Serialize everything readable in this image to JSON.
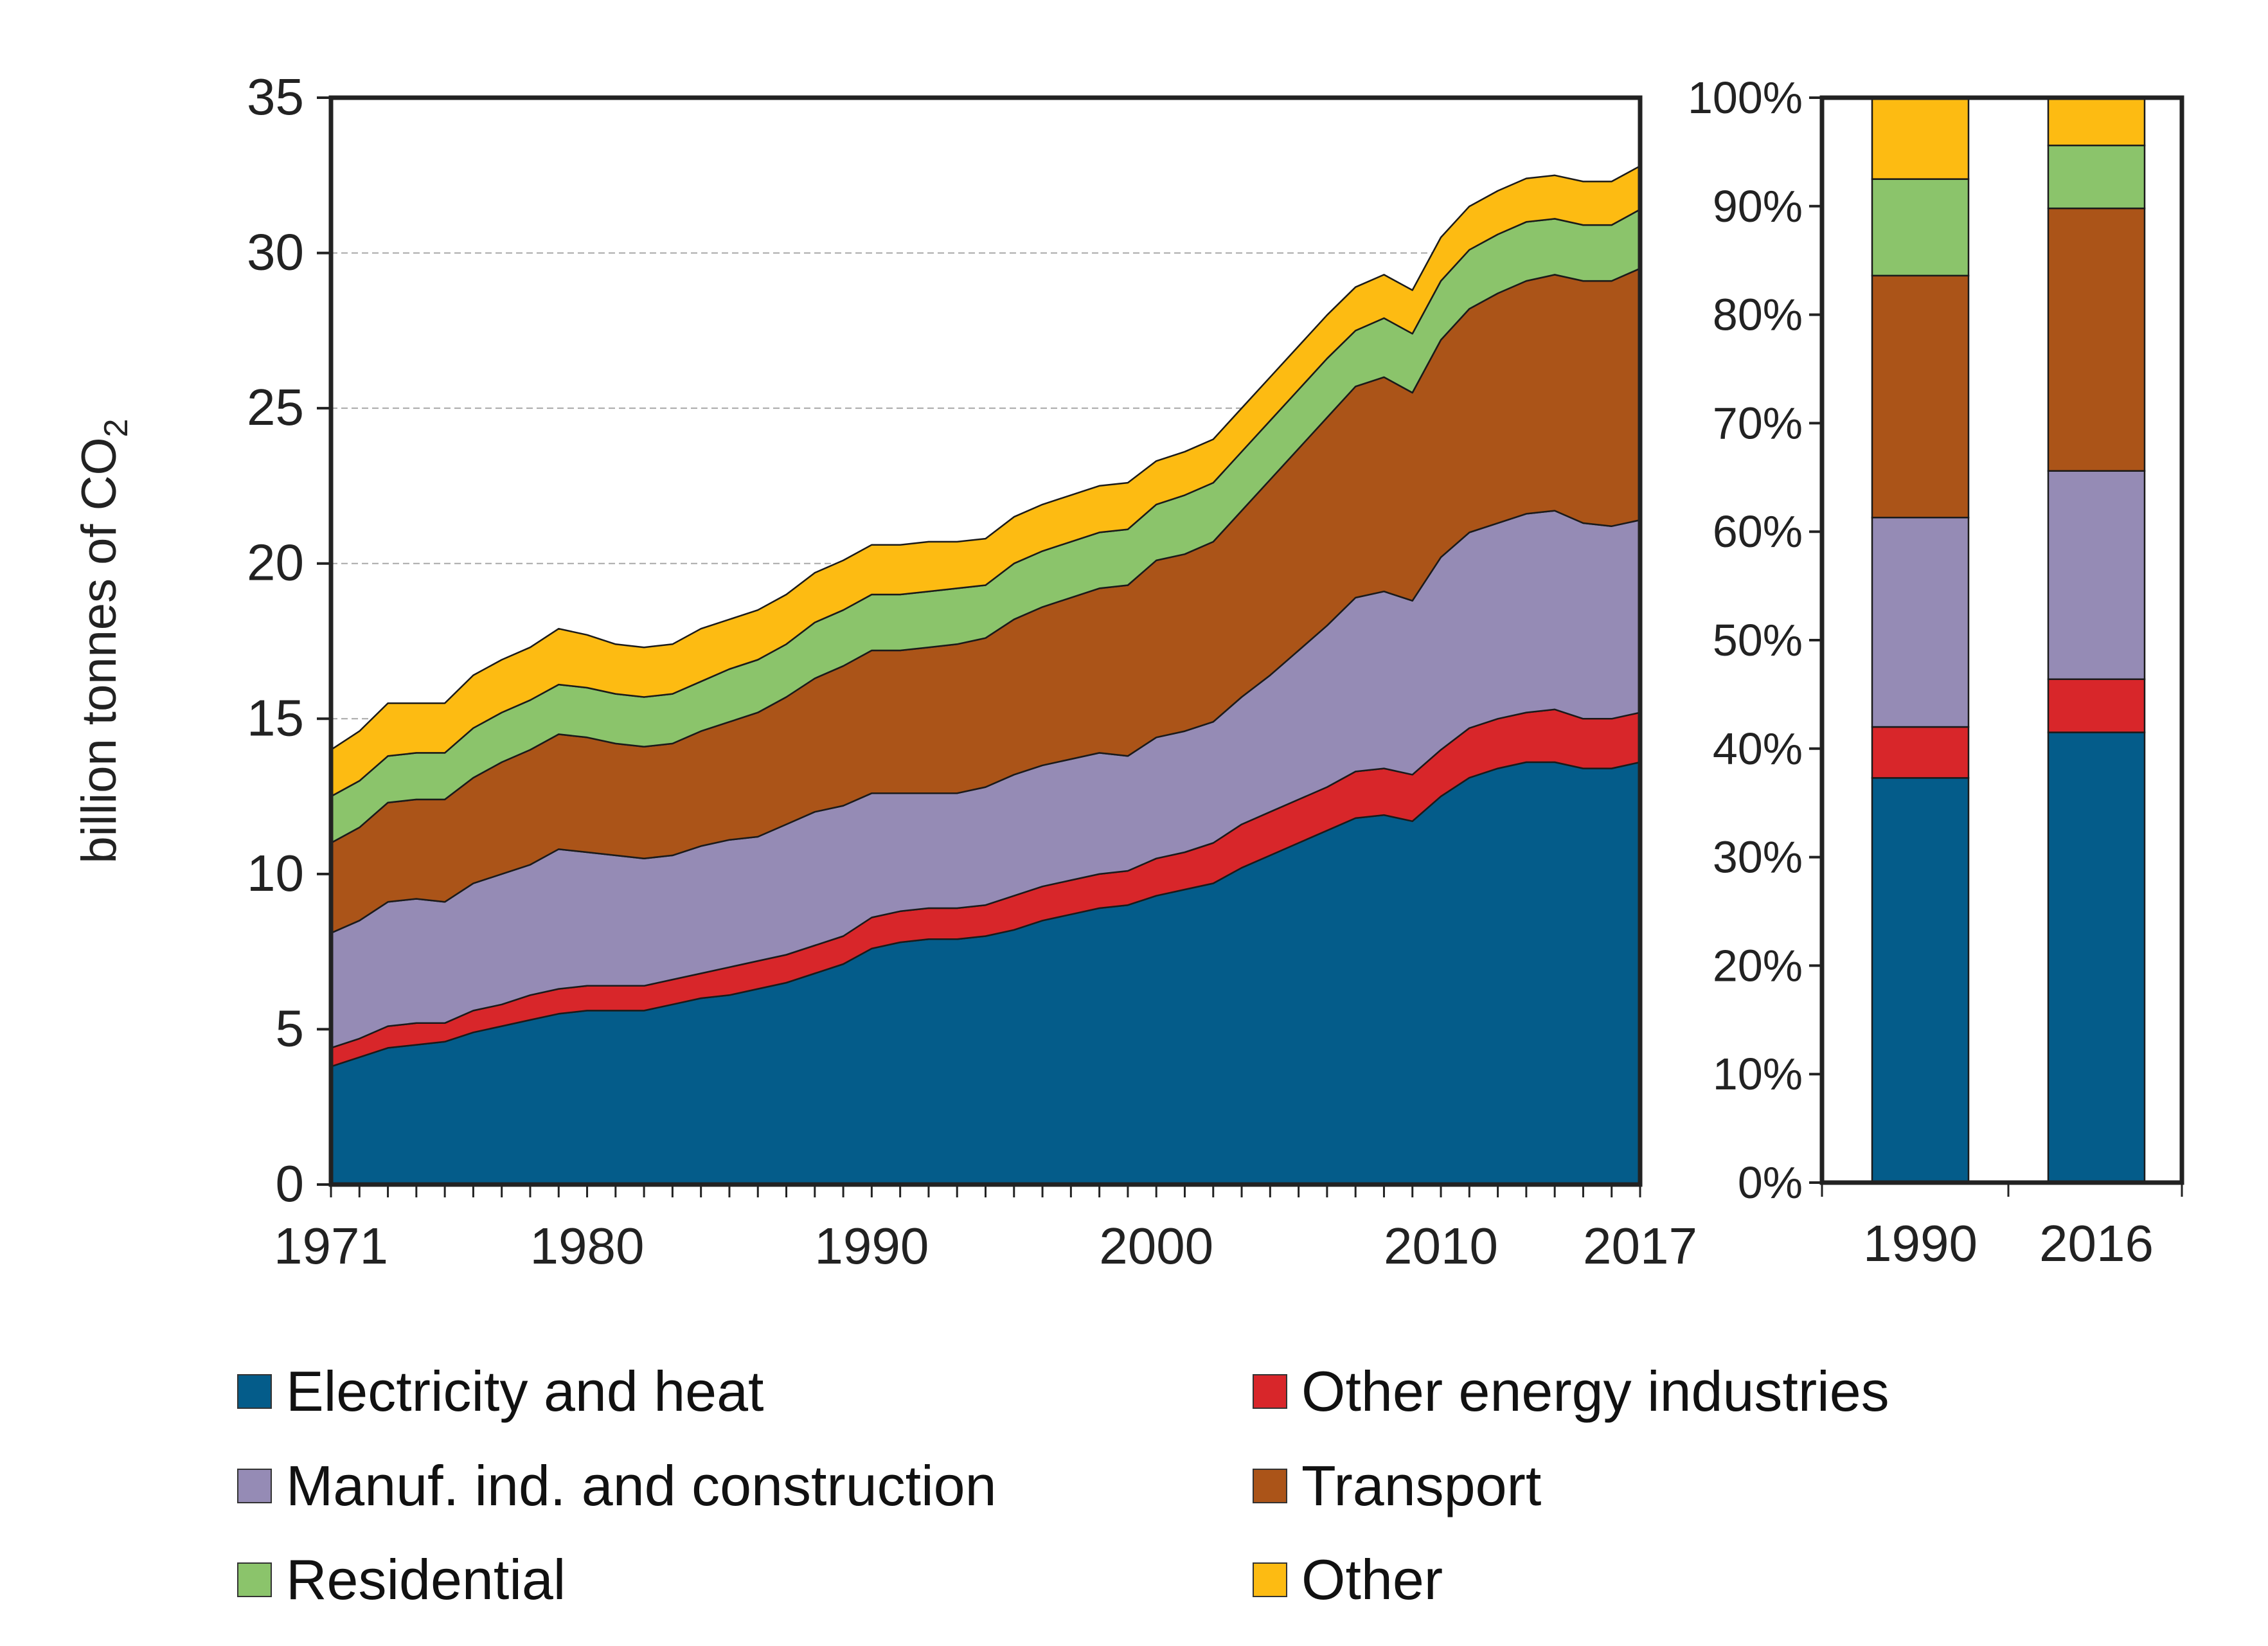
{
  "colors": {
    "electricity": "#045c8a",
    "other_energy": "#d8262a",
    "manuf": "#958bb5",
    "transport": "#ab5418",
    "residential": "#8bc46b",
    "other": "#fdbb12",
    "axis": "#222222",
    "grid": "#a8a8a8"
  },
  "chart_data": [
    {
      "type": "area",
      "stacked": true,
      "ylabel": "billion tonnes of CO2",
      "ylabel_parts": {
        "main": "billion tonnes of CO",
        "subscript": "2"
      },
      "ylim": [
        0,
        35
      ],
      "yticks": [
        0,
        5,
        10,
        15,
        20,
        25,
        30,
        35
      ],
      "xlim": [
        1971,
        2017
      ],
      "xtick_labels": [
        "1971",
        "1980",
        "1990",
        "2000",
        "2010",
        "2017"
      ],
      "grid": "horizontal dashed",
      "x": [
        1971,
        1972,
        1973,
        1974,
        1975,
        1976,
        1977,
        1978,
        1979,
        1980,
        1981,
        1982,
        1983,
        1984,
        1985,
        1986,
        1987,
        1988,
        1989,
        1990,
        1991,
        1992,
        1993,
        1994,
        1995,
        1996,
        1997,
        1998,
        1999,
        2000,
        2001,
        2002,
        2003,
        2004,
        2005,
        2006,
        2007,
        2008,
        2009,
        2010,
        2011,
        2012,
        2013,
        2014,
        2015,
        2016,
        2017
      ],
      "series": [
        {
          "key": "electricity",
          "name": "Electricity and heat",
          "values": [
            3.8,
            4.1,
            4.4,
            4.5,
            4.6,
            4.9,
            5.1,
            5.3,
            5.5,
            5.6,
            5.6,
            5.6,
            5.8,
            6.0,
            6.1,
            6.3,
            6.5,
            6.8,
            7.1,
            7.6,
            7.8,
            7.9,
            7.9,
            8.0,
            8.2,
            8.5,
            8.7,
            8.9,
            9.0,
            9.3,
            9.5,
            9.7,
            10.2,
            10.6,
            11.0,
            11.4,
            11.8,
            11.9,
            11.7,
            12.5,
            13.1,
            13.4,
            13.6,
            13.6,
            13.4,
            13.4,
            13.6
          ]
        },
        {
          "key": "other_energy",
          "name": "Other energy industries",
          "values": [
            0.6,
            0.6,
            0.7,
            0.7,
            0.6,
            0.7,
            0.7,
            0.8,
            0.8,
            0.8,
            0.8,
            0.8,
            0.8,
            0.8,
            0.9,
            0.9,
            0.9,
            0.9,
            0.9,
            1.0,
            1.0,
            1.0,
            1.0,
            1.0,
            1.1,
            1.1,
            1.1,
            1.1,
            1.1,
            1.2,
            1.2,
            1.3,
            1.4,
            1.4,
            1.4,
            1.4,
            1.5,
            1.5,
            1.5,
            1.5,
            1.6,
            1.6,
            1.6,
            1.7,
            1.6,
            1.6,
            1.6
          ]
        },
        {
          "key": "manuf",
          "name": "Manuf. ind. and construction",
          "values": [
            3.7,
            3.8,
            4.0,
            4.0,
            3.9,
            4.1,
            4.2,
            4.2,
            4.5,
            4.3,
            4.2,
            4.1,
            4.0,
            4.1,
            4.1,
            4.0,
            4.2,
            4.3,
            4.2,
            4.0,
            3.8,
            3.7,
            3.7,
            3.8,
            3.9,
            3.9,
            3.9,
            3.9,
            3.7,
            3.9,
            3.9,
            3.9,
            4.1,
            4.4,
            4.8,
            5.2,
            5.6,
            5.7,
            5.6,
            6.2,
            6.3,
            6.3,
            6.4,
            6.4,
            6.3,
            6.2,
            6.2
          ]
        },
        {
          "key": "transport",
          "name": "Transport",
          "values": [
            2.9,
            3.0,
            3.2,
            3.2,
            3.3,
            3.4,
            3.6,
            3.7,
            3.7,
            3.7,
            3.6,
            3.6,
            3.6,
            3.7,
            3.8,
            4.0,
            4.1,
            4.3,
            4.5,
            4.6,
            4.6,
            4.7,
            4.8,
            4.8,
            5.0,
            5.1,
            5.2,
            5.3,
            5.5,
            5.7,
            5.7,
            5.8,
            6.0,
            6.3,
            6.5,
            6.7,
            6.8,
            6.9,
            6.7,
            7.0,
            7.2,
            7.4,
            7.5,
            7.6,
            7.8,
            7.9,
            8.1
          ]
        },
        {
          "key": "residential",
          "name": "Residential",
          "values": [
            1.5,
            1.5,
            1.5,
            1.5,
            1.5,
            1.6,
            1.6,
            1.6,
            1.6,
            1.6,
            1.6,
            1.6,
            1.6,
            1.6,
            1.7,
            1.7,
            1.7,
            1.8,
            1.8,
            1.8,
            1.8,
            1.8,
            1.8,
            1.7,
            1.8,
            1.8,
            1.8,
            1.8,
            1.8,
            1.8,
            1.9,
            1.9,
            1.9,
            1.9,
            1.9,
            1.9,
            1.8,
            1.9,
            1.9,
            1.9,
            1.9,
            1.9,
            1.9,
            1.8,
            1.8,
            1.8,
            1.9
          ]
        },
        {
          "key": "other",
          "name": "Other",
          "values": [
            1.5,
            1.6,
            1.7,
            1.6,
            1.6,
            1.7,
            1.7,
            1.7,
            1.8,
            1.7,
            1.6,
            1.6,
            1.6,
            1.7,
            1.6,
            1.6,
            1.6,
            1.6,
            1.6,
            1.6,
            1.6,
            1.6,
            1.5,
            1.5,
            1.5,
            1.5,
            1.5,
            1.5,
            1.5,
            1.4,
            1.4,
            1.4,
            1.4,
            1.4,
            1.4,
            1.4,
            1.4,
            1.4,
            1.4,
            1.4,
            1.4,
            1.4,
            1.4,
            1.4,
            1.4,
            1.4,
            1.4
          ]
        }
      ]
    },
    {
      "type": "bar",
      "stacked": true,
      "normalized": true,
      "categories": [
        "1990",
        "2016"
      ],
      "ylim": [
        0,
        100
      ],
      "yticks": [
        0,
        10,
        20,
        30,
        40,
        50,
        60,
        70,
        80,
        90,
        100
      ],
      "ytick_suffix": "%",
      "series": [
        {
          "key": "electricity",
          "name": "Electricity and heat",
          "values": [
            37.3,
            41.5
          ]
        },
        {
          "key": "other_energy",
          "name": "Other energy industries",
          "values": [
            4.7,
            4.9
          ]
        },
        {
          "key": "manuf",
          "name": "Manuf. ind. and construction",
          "values": [
            19.3,
            19.2
          ]
        },
        {
          "key": "transport",
          "name": "Transport",
          "values": [
            22.3,
            24.2
          ]
        },
        {
          "key": "residential",
          "name": "Residential",
          "values": [
            8.9,
            5.8
          ]
        },
        {
          "key": "other",
          "name": "Other",
          "values": [
            7.5,
            4.4
          ]
        }
      ]
    }
  ],
  "legend": [
    {
      "key": "electricity",
      "label": "Electricity and heat"
    },
    {
      "key": "other_energy",
      "label": "Other energy industries"
    },
    {
      "key": "manuf",
      "label": "Manuf. ind. and construction"
    },
    {
      "key": "transport",
      "label": "Transport"
    },
    {
      "key": "residential",
      "label": "Residential"
    },
    {
      "key": "other",
      "label": "Other"
    }
  ]
}
